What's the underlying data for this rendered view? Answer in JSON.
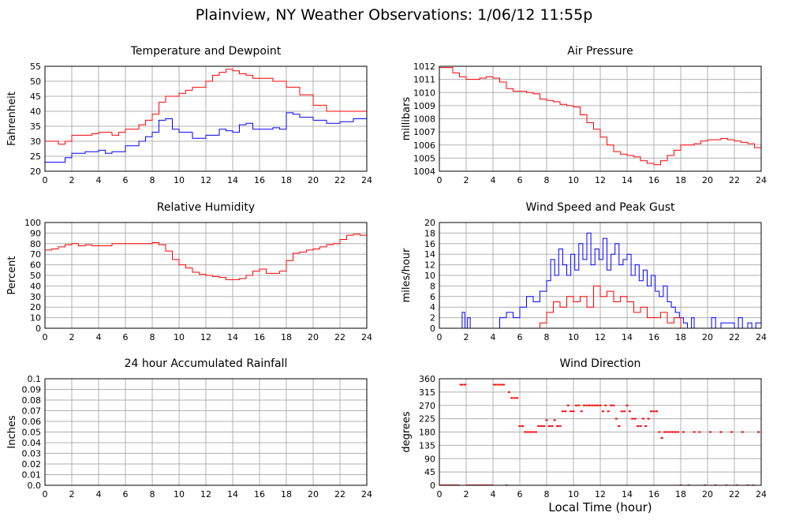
{
  "title": "Plainview, NY Weather Observations: 1/06/12 11:55p",
  "xlabel": "Local Time (hour)",
  "colors": {
    "red": "#ff0000",
    "blue": "#0000ff",
    "grid": "#b0b0b0"
  },
  "chart_data": [
    {
      "id": "temp",
      "type": "line",
      "title": "Temperature and Dewpoint",
      "ylabel": "Fahrenheit",
      "xlim": [
        0,
        24
      ],
      "ylim": [
        20,
        55
      ],
      "xticks": [
        0,
        2,
        4,
        6,
        8,
        10,
        12,
        14,
        16,
        18,
        20,
        22,
        24
      ],
      "yticks": [
        "20",
        "25",
        "30",
        "35",
        "40",
        "45",
        "50",
        "55"
      ],
      "series": [
        {
          "color": "#ff0000",
          "x": [
            0,
            1,
            1.5,
            2,
            3,
            3.5,
            4,
            5,
            5.5,
            6,
            7,
            7.5,
            8,
            8.5,
            9,
            10,
            10.5,
            11,
            12,
            12.5,
            13,
            13.5,
            14,
            14.5,
            15,
            15.5,
            16,
            17,
            18,
            19,
            20,
            21,
            22,
            23,
            24
          ],
          "y": [
            30,
            29,
            30,
            32,
            32,
            32.5,
            33,
            32,
            33,
            34,
            35.5,
            37,
            39,
            43,
            45,
            46,
            47,
            48,
            50,
            52,
            53,
            54,
            53.5,
            52.5,
            52,
            51,
            51,
            50,
            48,
            45.5,
            42,
            40,
            40,
            40,
            39
          ]
        },
        {
          "color": "#0000ff",
          "x": [
            0,
            1,
            1.5,
            2,
            3,
            4,
            4.5,
            5,
            6,
            7,
            7.5,
            8,
            8.5,
            9,
            9.5,
            10,
            11,
            11.5,
            12,
            13,
            13.5,
            14,
            14.5,
            15,
            15.5,
            16,
            17,
            17.5,
            18,
            18.5,
            19,
            20,
            21,
            22,
            23,
            24
          ],
          "y": [
            23,
            23,
            24.5,
            26,
            26.5,
            27,
            26,
            26.5,
            28.5,
            30,
            31.5,
            33,
            37,
            37.5,
            34,
            33,
            31,
            31,
            32,
            34,
            33.5,
            33,
            35.5,
            36,
            34,
            34,
            34.5,
            34,
            39.5,
            39,
            38,
            37,
            36,
            36.5,
            37.5,
            36
          ]
        }
      ]
    },
    {
      "id": "pressure",
      "type": "line",
      "title": "Air Pressure",
      "ylabel": "millibars",
      "xlim": [
        0,
        24
      ],
      "ylim": [
        1004,
        1012
      ],
      "xticks": [
        0,
        2,
        4,
        6,
        8,
        10,
        12,
        14,
        16,
        18,
        20,
        22,
        24
      ],
      "yticks": [
        "1004",
        "1005",
        "1006",
        "1007",
        "1008",
        "1009",
        "1010",
        "1011",
        "1012"
      ],
      "series": [
        {
          "color": "#ff0000",
          "x": [
            0,
            0.5,
            1,
            1.5,
            2,
            2.5,
            3,
            3.5,
            4,
            4.5,
            5,
            5.5,
            6,
            6.5,
            7,
            7.5,
            8,
            8.5,
            9,
            9.5,
            10,
            10.5,
            11,
            11.5,
            12,
            12.5,
            13,
            13.5,
            14,
            14.5,
            15,
            15.5,
            16,
            16.5,
            17,
            17.5,
            18,
            18.5,
            19,
            19.5,
            20,
            20.5,
            21,
            21.5,
            22,
            22.5,
            23,
            23.5,
            24
          ],
          "y": [
            1011.9,
            1011.9,
            1011.5,
            1011.2,
            1011.0,
            1011.0,
            1011.1,
            1011.2,
            1011.1,
            1010.8,
            1010.3,
            1010.1,
            1010.1,
            1010.0,
            1009.9,
            1009.5,
            1009.4,
            1009.3,
            1009.1,
            1009.0,
            1008.9,
            1008.3,
            1007.7,
            1007.2,
            1006.6,
            1006.0,
            1005.5,
            1005.3,
            1005.2,
            1005.1,
            1004.8,
            1004.6,
            1004.5,
            1004.8,
            1005.2,
            1005.6,
            1006.0,
            1006.0,
            1006.1,
            1006.3,
            1006.4,
            1006.4,
            1006.5,
            1006.4,
            1006.3,
            1006.2,
            1006.1,
            1005.8,
            1005.6
          ]
        }
      ]
    },
    {
      "id": "humidity",
      "type": "line",
      "title": "Relative Humidity",
      "ylabel": "Percent",
      "xlim": [
        0,
        24
      ],
      "ylim": [
        0,
        100
      ],
      "xticks": [
        0,
        2,
        4,
        6,
        8,
        10,
        12,
        14,
        16,
        18,
        20,
        22,
        24
      ],
      "yticks": [
        "0",
        "10",
        "20",
        "30",
        "40",
        "50",
        "60",
        "70",
        "80",
        "90",
        "100"
      ],
      "series": [
        {
          "color": "#ff0000",
          "x": [
            0,
            0.5,
            1,
            1.5,
            2,
            2.5,
            3,
            3.5,
            4,
            4.5,
            5,
            6,
            7,
            7.5,
            8,
            8.5,
            9,
            9.5,
            10,
            10.5,
            11,
            11.5,
            12,
            12.5,
            13,
            13.5,
            14,
            14.5,
            15,
            15.5,
            16,
            16.5,
            17,
            17.5,
            18,
            18.5,
            19,
            19.5,
            20,
            20.5,
            21,
            21.5,
            22,
            22.5,
            23,
            23.5,
            24
          ],
          "y": [
            74,
            75,
            77,
            79,
            80,
            78,
            79,
            78,
            78,
            78,
            80,
            80,
            80,
            80,
            81,
            79,
            73,
            65,
            60,
            57,
            53,
            51,
            50,
            49,
            48,
            46,
            46,
            47,
            50,
            54,
            56,
            52,
            52,
            54,
            64,
            71,
            72,
            74,
            75,
            77,
            79,
            80,
            84,
            88,
            89,
            88,
            88
          ]
        }
      ]
    },
    {
      "id": "wind",
      "type": "line",
      "title": "Wind Speed and Peak Gust",
      "ylabel": "miles/hour",
      "xlim": [
        0,
        24
      ],
      "ylim": [
        0,
        20
      ],
      "xticks": [
        0,
        2,
        4,
        6,
        8,
        10,
        12,
        14,
        16,
        18,
        20,
        22,
        24
      ],
      "yticks": [
        "0",
        "2",
        "4",
        "6",
        "8",
        "10",
        "12",
        "14",
        "16",
        "18",
        "20"
      ],
      "series": [
        {
          "color": "#0000ff",
          "x": [
            0,
            1,
            1.5,
            1.7,
            1.9,
            2.1,
            2.3,
            4,
            4.5,
            5,
            5.5,
            6,
            6.5,
            7,
            7.5,
            8,
            8.3,
            8.6,
            8.9,
            9.2,
            9.5,
            9.8,
            10.1,
            10.4,
            10.7,
            11,
            11.3,
            11.6,
            11.9,
            12.2,
            12.5,
            12.8,
            13.1,
            13.4,
            13.7,
            14,
            14.3,
            14.6,
            14.9,
            15.2,
            15.5,
            15.8,
            16.1,
            16.4,
            16.7,
            17,
            17.3,
            17.6,
            17.9,
            18.2,
            18.5,
            18.8,
            19,
            20,
            20.3,
            20.6,
            21,
            22,
            22.3,
            22.6,
            23,
            23.3,
            23.6,
            24
          ],
          "y": [
            0,
            0,
            0,
            3,
            0,
            2,
            0,
            0,
            2,
            3,
            2,
            4,
            6,
            5,
            7,
            9,
            13,
            10,
            15,
            12,
            10,
            14,
            11,
            16,
            13,
            18,
            12,
            15,
            13,
            17,
            11,
            14,
            16,
            12,
            13,
            14,
            10,
            12,
            9,
            11,
            8,
            10,
            7,
            6,
            8,
            5,
            4,
            3,
            2,
            1,
            0,
            2,
            0,
            0,
            2,
            0,
            1,
            0,
            2,
            0,
            1,
            0,
            1,
            0
          ]
        },
        {
          "color": "#ff0000",
          "x": [
            0,
            7,
            7.5,
            8,
            8.5,
            9,
            9.5,
            10,
            10.5,
            11,
            11.5,
            12,
            12.5,
            13,
            13.5,
            14,
            14.5,
            15,
            15.5,
            16,
            16.5,
            17,
            17.5,
            18,
            24
          ],
          "y": [
            0,
            0,
            1,
            3,
            5,
            4,
            6,
            5,
            6,
            4,
            8,
            6,
            7,
            5,
            6,
            5,
            3,
            4,
            2,
            2,
            3,
            1,
            2,
            0,
            0
          ]
        }
      ]
    },
    {
      "id": "rain",
      "type": "line",
      "title": "24 hour Accumulated Rainfall",
      "ylabel": "Inches",
      "xlim": [
        0,
        24
      ],
      "ylim": [
        0,
        0.1
      ],
      "xticks": [
        0,
        2,
        4,
        6,
        8,
        10,
        12,
        14,
        16,
        18,
        20,
        22,
        24
      ],
      "yticks": [
        "0.0",
        "0.01",
        "0.02",
        "0.03",
        "0.04",
        "0.05",
        "0.06",
        "0.07",
        "0.08",
        "0.09",
        "0.1"
      ],
      "series": [
        {
          "color": "#ff0000",
          "x": [
            0,
            24
          ],
          "y": [
            0,
            0
          ]
        }
      ]
    },
    {
      "id": "direction",
      "type": "scatter",
      "title": "Wind Direction",
      "ylabel": "degrees",
      "xlim": [
        0,
        24
      ],
      "ylim": [
        0,
        360
      ],
      "xticks": [
        0,
        2,
        4,
        6,
        8,
        10,
        12,
        14,
        16,
        18,
        20,
        22,
        24
      ],
      "yticks": [
        "0",
        "45",
        "90",
        "135",
        "180",
        "225",
        "270",
        "315",
        "360"
      ],
      "series": [
        {
          "color": "#ff0000",
          "x": [
            0,
            0.2,
            0.4,
            0.6,
            0.8,
            1,
            1.2,
            1.4,
            1.6,
            1.7,
            1.9,
            2.1,
            2.3,
            2.5,
            2.7,
            2.9,
            3.1,
            3.3,
            3.5,
            3.7,
            3.9,
            4.1,
            4.2,
            4.4,
            4.6,
            4.8,
            5,
            5.2,
            5.4,
            5.6,
            5.8,
            6,
            6.2,
            6.4,
            6.6,
            6.8,
            7,
            7.2,
            7.4,
            7.6,
            7.8,
            8,
            8.2,
            8.4,
            8.6,
            8.8,
            9,
            9.2,
            9.4,
            9.6,
            9.8,
            10,
            10.2,
            10.4,
            10.6,
            10.8,
            11,
            11.2,
            11.4,
            11.6,
            11.8,
            12,
            12.2,
            12.4,
            12.6,
            12.8,
            13,
            13.2,
            13.4,
            13.6,
            13.8,
            14,
            14.2,
            14.4,
            14.6,
            14.8,
            15,
            15.2,
            15.4,
            15.6,
            15.8,
            16,
            16.2,
            16.4,
            16.6,
            16.8,
            17,
            17.2,
            17.4,
            17.6,
            17.8,
            18,
            18.2,
            18.6,
            19,
            19.4,
            19.8,
            20.2,
            20.6,
            21,
            21.4,
            21.8,
            22.2,
            22.6,
            23,
            23.4,
            23.8
          ],
          "y": [
            0,
            0,
            0,
            0,
            0,
            0,
            0,
            0,
            340,
            340,
            340,
            0,
            0,
            0,
            0,
            0,
            0,
            0,
            0,
            0,
            0,
            340,
            340,
            340,
            340,
            340,
            0,
            315,
            295,
            295,
            295,
            200,
            200,
            180,
            180,
            180,
            180,
            180,
            200,
            200,
            200,
            220,
            200,
            200,
            220,
            200,
            200,
            250,
            250,
            270,
            250,
            250,
            270,
            270,
            250,
            270,
            270,
            270,
            270,
            270,
            270,
            270,
            250,
            270,
            250,
            270,
            270,
            225,
            200,
            250,
            250,
            270,
            250,
            225,
            225,
            200,
            200,
            225,
            200,
            225,
            250,
            250,
            250,
            180,
            160,
            180,
            180,
            180,
            180,
            180,
            180,
            0,
            180,
            0,
            180,
            180,
            0,
            180,
            0,
            180,
            0,
            180,
            0,
            180,
            0,
            0,
            180
          ]
        }
      ]
    }
  ]
}
